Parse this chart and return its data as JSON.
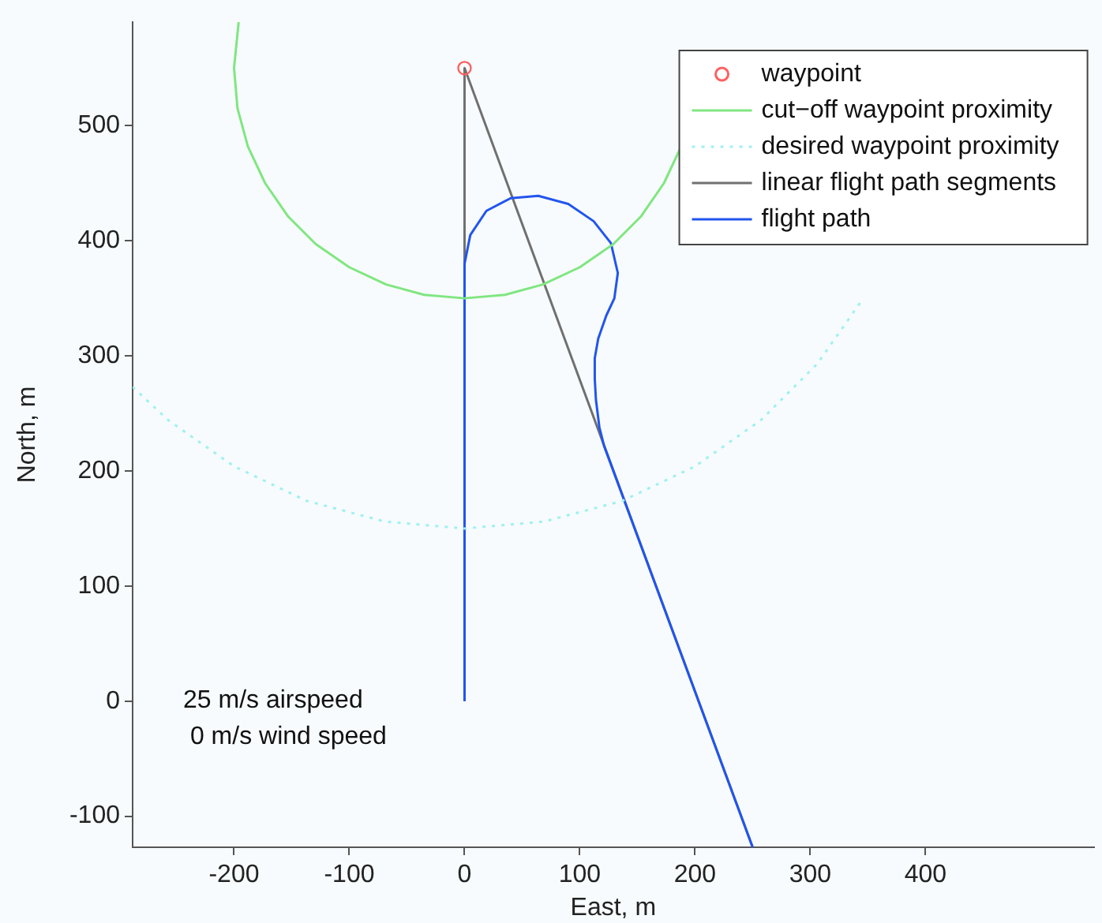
{
  "chart_data": {
    "type": "line",
    "xlabel": "East, m",
    "ylabel": "North, m",
    "xlim": [
      -288,
      546
    ],
    "ylim": [
      -127,
      590
    ],
    "xticks": [
      -200,
      -100,
      0,
      100,
      200,
      300,
      400
    ],
    "yticks": [
      -100,
      0,
      100,
      200,
      300,
      400,
      500
    ],
    "grid": false,
    "legend": "top right",
    "annotations": [
      "25 m/s airspeed",
      " 0 m/s wind speed"
    ],
    "series": [
      {
        "name": "waypoint",
        "type": "scatter",
        "marker": "circle",
        "color": "#ff6060",
        "x": [
          0
        ],
        "values": [
          550
        ]
      },
      {
        "name": "cut−off waypoint proximity",
        "color": "#80e680",
        "x": [
          188,
          173,
          153,
          129,
          100,
          68,
          35,
          0,
          -35,
          -68,
          -100,
          -129,
          -153,
          -173,
          -188,
          -197,
          -200,
          -196
        ],
        "values": [
          482,
          450,
          421,
          397,
          377,
          362,
          353,
          350,
          353,
          362,
          377,
          397,
          421,
          450,
          482,
          515,
          550,
          590
        ]
      },
      {
        "name": "desired waypoint proximity",
        "color": "#a0f0f0",
        "line_style": "dotted",
        "x": [
          -288,
          -257,
          -200,
          -137,
          -69,
          0,
          69,
          137,
          200,
          257,
          306,
          346
        ],
        "values": [
          273,
          244,
          204,
          174,
          156,
          150,
          156,
          174,
          204,
          244,
          293,
          350
        ]
      },
      {
        "name": "flight path",
        "color": "#2255ee",
        "x": [
          0,
          0,
          5,
          19,
          40,
          64,
          90,
          112,
          127,
          133,
          130,
          123,
          116,
          113,
          113,
          114,
          117,
          121,
          250
        ],
        "values": [
          0,
          380,
          405,
          426,
          437,
          439,
          432,
          417,
          398,
          372,
          350,
          335,
          315,
          298,
          280,
          262,
          238,
          222,
          -127
        ]
      },
      {
        "name": "linear flight path segments",
        "color": "#707070",
        "x": [
          0,
          0,
          250
        ],
        "values": [
          0,
          550,
          -127
        ]
      }
    ]
  }
}
